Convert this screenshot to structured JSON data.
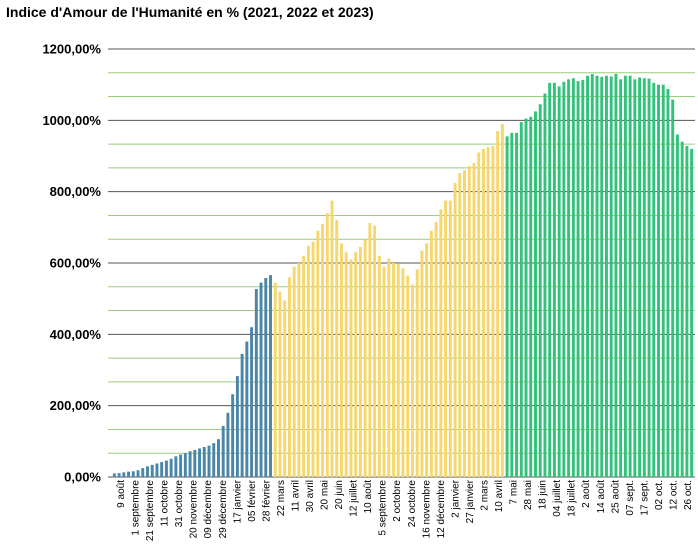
{
  "title": "Indice d'Amour de l'Humanité en % (2021, 2022 et 2023)",
  "chart_data": {
    "type": "bar",
    "title": "Indice d'Amour de l'Humanité en % (2021, 2022 et 2023)",
    "xlabel": "",
    "ylabel": "",
    "ylim": [
      0,
      1200
    ],
    "y_tick_labels": [
      "0,00%",
      "200,00%",
      "400,00%",
      "600,00%",
      "800,00%",
      "1000,00%",
      "1200,00%"
    ],
    "grid": true,
    "legend": "none",
    "colors": {
      "2021": "#4a86a8",
      "2022": "#f5d76e",
      "2023": "#33c27a",
      "major_grid": "#555555",
      "minor_grid": "#9ccc7f"
    },
    "series": [
      {
        "color_key": "2021",
        "values": [
          10,
          11,
          13,
          15,
          16,
          19,
          25,
          30,
          34,
          38,
          42,
          46,
          51,
          58,
          63,
          67,
          72,
          76,
          80,
          84,
          88,
          95,
          106,
          143,
          180,
          232,
          283,
          345,
          380,
          420,
          527,
          545,
          558,
          566
        ]
      },
      {
        "color_key": "2022",
        "values": [
          545,
          520,
          495,
          560,
          590,
          600,
          620,
          648,
          660,
          690,
          710,
          740,
          775,
          720,
          655,
          630,
          610,
          630,
          645,
          665,
          712,
          705,
          620,
          590,
          613,
          600,
          597,
          585,
          565,
          540,
          582,
          635,
          655,
          690,
          715,
          750,
          775,
          775,
          825,
          852,
          860,
          872,
          880,
          910,
          920,
          925,
          928,
          970,
          990
        ]
      },
      {
        "color_key": "2023",
        "values": [
          955,
          965,
          965,
          995,
          1005,
          1010,
          1025,
          1045,
          1075,
          1105,
          1105,
          1095,
          1108,
          1115,
          1118,
          1110,
          1113,
          1125,
          1130,
          1125,
          1122,
          1125,
          1123,
          1130,
          1115,
          1125,
          1125,
          1115,
          1120,
          1118,
          1117,
          1105,
          1100,
          1100,
          1088,
          1058,
          960,
          940,
          928,
          920
        ]
      }
    ],
    "x_tick_labels": [
      "9 août",
      "1 septembre",
      "21 septembre",
      "11 octobre",
      "31 octobre",
      "20 novembre",
      "09 décembre",
      "29 décembre",
      "17 janvier",
      "05 février",
      "28 février",
      "22 mars",
      "11 avril",
      "30 avril",
      "20 mai",
      "20 juin",
      "12 juillet",
      "10 août",
      "5 septembre",
      "2 octobre",
      "24 octobre",
      "16 novembre",
      "12 décembre",
      "2 janvier",
      "27 janvier",
      "2 mars",
      "10 avril",
      "7 mai",
      "28 mai",
      "18 juin",
      "04 juillet",
      "18 juillet",
      "2 août",
      "14 août",
      "25 août",
      "07 sept.",
      "17 sept.",
      "02 oct.",
      "12 oct.",
      "26 oct."
    ]
  }
}
